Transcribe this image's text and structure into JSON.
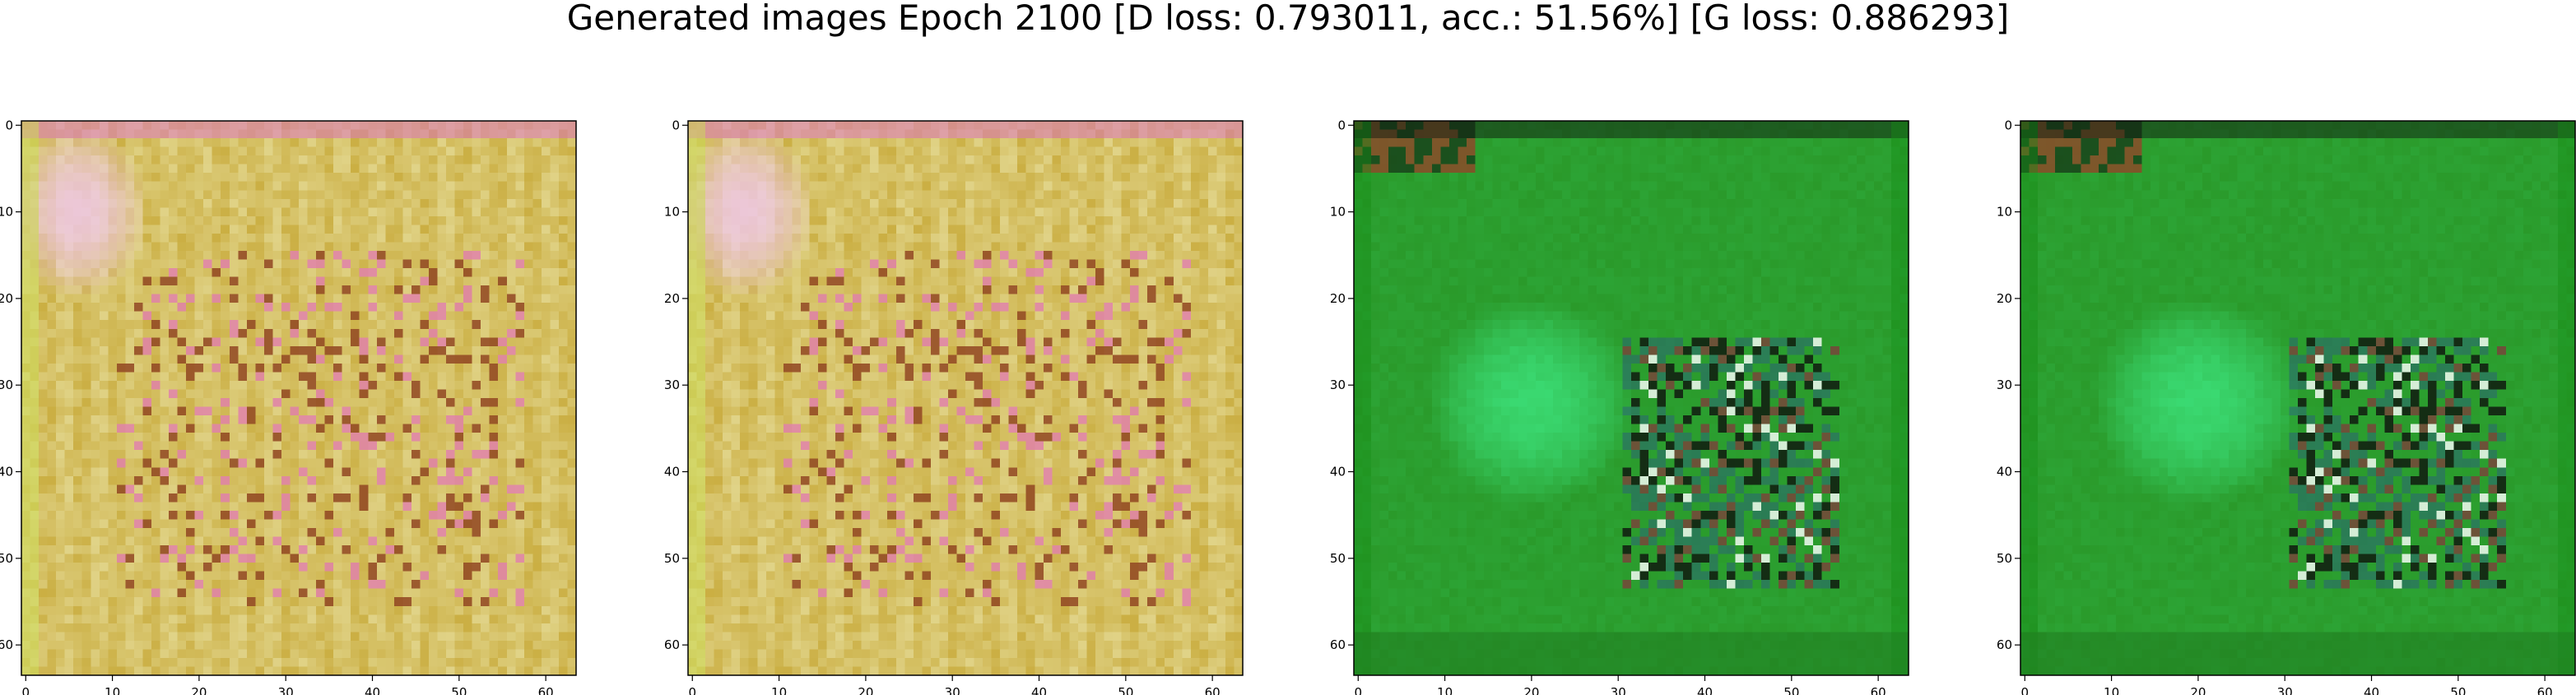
{
  "figure": {
    "title": "Generated images Epoch 2100 [D loss: 0.793011, acc.: 51.56%] [G loss: 0.886293]"
  },
  "axes": {
    "x_ticks": [
      "0",
      "10",
      "20",
      "30",
      "40",
      "50",
      "60"
    ],
    "y_ticks": [
      "0",
      "10",
      "20",
      "30",
      "40",
      "50",
      "60"
    ],
    "xlim": [
      -0.5,
      63.5
    ],
    "ylim": [
      63.5,
      -0.5
    ]
  },
  "images": [
    {
      "name": "generated-image-1",
      "palette": "yellow-olive",
      "colors": {
        "base": "#c9ac3e",
        "light": "#e8e0a0",
        "accent": "#e070b0",
        "dark": "#8a3a20"
      }
    },
    {
      "name": "generated-image-2",
      "palette": "yellow-olive",
      "colors": {
        "base": "#c9ac3e",
        "light": "#e8e0a0",
        "accent": "#e070b0",
        "dark": "#8a3a20"
      }
    },
    {
      "name": "generated-image-3",
      "palette": "green",
      "colors": {
        "base": "#2a9a2a",
        "light": "#3ad870",
        "accent": "#ffffff",
        "dark": "#101a10"
      }
    },
    {
      "name": "generated-image-4",
      "palette": "green",
      "colors": {
        "base": "#2a9a2a",
        "light": "#3ad870",
        "accent": "#ffffff",
        "dark": "#101a10"
      }
    }
  ]
}
